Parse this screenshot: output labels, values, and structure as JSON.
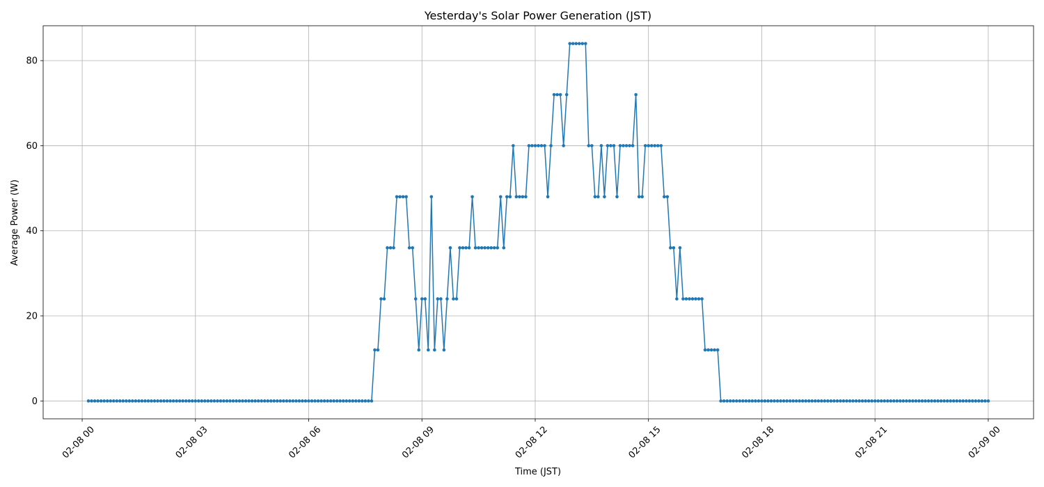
{
  "chart_data": {
    "type": "line",
    "title": "Yesterday's Solar Power Generation (JST)",
    "xlabel": "Time (JST)",
    "ylabel": "Average Power (W)",
    "color": "#1f77b4",
    "grid": true,
    "xlim": [
      -62,
      1512
    ],
    "ylim": [
      -4.2,
      88.2
    ],
    "xticks": [
      {
        "value": 0,
        "label": "02-08 00"
      },
      {
        "value": 180,
        "label": "02-08 03"
      },
      {
        "value": 360,
        "label": "02-08 06"
      },
      {
        "value": 540,
        "label": "02-08 09"
      },
      {
        "value": 720,
        "label": "02-08 12"
      },
      {
        "value": 900,
        "label": "02-08 15"
      },
      {
        "value": 1080,
        "label": "02-08 18"
      },
      {
        "value": 1260,
        "label": "02-08 21"
      },
      {
        "value": 1440,
        "label": "02-09 00"
      }
    ],
    "yticks": [
      0,
      20,
      40,
      60,
      80
    ],
    "x": [
      10,
      15,
      20,
      25,
      30,
      35,
      40,
      45,
      50,
      55,
      60,
      65,
      70,
      75,
      80,
      85,
      90,
      95,
      100,
      105,
      110,
      115,
      120,
      125,
      130,
      135,
      140,
      145,
      150,
      155,
      160,
      165,
      170,
      175,
      180,
      185,
      190,
      195,
      200,
      205,
      210,
      215,
      220,
      225,
      230,
      235,
      240,
      245,
      250,
      255,
      260,
      265,
      270,
      275,
      280,
      285,
      290,
      295,
      300,
      305,
      310,
      315,
      320,
      325,
      330,
      335,
      340,
      345,
      350,
      355,
      360,
      365,
      370,
      375,
      380,
      385,
      390,
      395,
      400,
      405,
      410,
      415,
      420,
      425,
      430,
      435,
      440,
      445,
      450,
      455,
      460,
      465,
      470,
      475,
      480,
      485,
      490,
      495,
      500,
      505,
      510,
      515,
      520,
      525,
      530,
      535,
      540,
      545,
      550,
      555,
      560,
      565,
      570,
      575,
      580,
      585,
      590,
      595,
      600,
      605,
      610,
      615,
      620,
      625,
      630,
      635,
      640,
      645,
      650,
      655,
      660,
      665,
      670,
      675,
      680,
      685,
      690,
      695,
      700,
      705,
      710,
      715,
      720,
      725,
      730,
      735,
      740,
      745,
      750,
      755,
      760,
      765,
      770,
      775,
      780,
      785,
      790,
      795,
      800,
      805,
      810,
      815,
      820,
      825,
      830,
      835,
      840,
      845,
      850,
      855,
      860,
      865,
      870,
      875,
      880,
      885,
      890,
      895,
      900,
      905,
      910,
      915,
      920,
      925,
      930,
      935,
      940,
      945,
      950,
      955,
      960,
      965,
      970,
      975,
      980,
      985,
      990,
      995,
      1000,
      1005,
      1010,
      1015,
      1020,
      1025,
      1030,
      1035,
      1040,
      1045,
      1050,
      1055,
      1060,
      1065,
      1070,
      1075,
      1080,
      1085,
      1090,
      1095,
      1100,
      1105,
      1110,
      1115,
      1120,
      1125,
      1130,
      1135,
      1140,
      1145,
      1150,
      1155,
      1160,
      1165,
      1170,
      1175,
      1180,
      1185,
      1190,
      1195,
      1200,
      1205,
      1210,
      1215,
      1220,
      1225,
      1230,
      1235,
      1240,
      1245,
      1250,
      1255,
      1260,
      1265,
      1270,
      1275,
      1280,
      1285,
      1290,
      1295,
      1300,
      1305,
      1310,
      1315,
      1320,
      1325,
      1330,
      1335,
      1340,
      1345,
      1350,
      1355,
      1360,
      1365,
      1370,
      1375,
      1380,
      1385,
      1390,
      1395,
      1400,
      1405,
      1410,
      1415,
      1420,
      1425,
      1430,
      1435,
      1440
    ],
    "values": [
      0,
      0,
      0,
      0,
      0,
      0,
      0,
      0,
      0,
      0,
      0,
      0,
      0,
      0,
      0,
      0,
      0,
      0,
      0,
      0,
      0,
      0,
      0,
      0,
      0,
      0,
      0,
      0,
      0,
      0,
      0,
      0,
      0,
      0,
      0,
      0,
      0,
      0,
      0,
      0,
      0,
      0,
      0,
      0,
      0,
      0,
      0,
      0,
      0,
      0,
      0,
      0,
      0,
      0,
      0,
      0,
      0,
      0,
      0,
      0,
      0,
      0,
      0,
      0,
      0,
      0,
      0,
      0,
      0,
      0,
      0,
      0,
      0,
      0,
      0,
      0,
      0,
      0,
      0,
      0,
      0,
      0,
      0,
      0,
      0,
      0,
      0,
      0,
      0,
      0,
      0,
      12,
      12,
      24,
      24,
      36,
      36,
      36,
      48,
      48,
      48,
      48,
      36,
      36,
      24,
      12,
      24,
      24,
      12,
      48,
      12,
      24,
      24,
      12,
      24,
      36,
      24,
      24,
      36,
      36,
      36,
      36,
      48,
      36,
      36,
      36,
      36,
      36,
      36,
      36,
      36,
      48,
      36,
      48,
      48,
      60,
      48,
      48,
      48,
      48,
      60,
      60,
      60,
      60,
      60,
      60,
      48,
      60,
      72,
      72,
      72,
      60,
      72,
      84,
      84,
      84,
      84,
      84,
      84,
      60,
      60,
      48,
      48,
      60,
      48,
      60,
      60,
      60,
      48,
      60,
      60,
      60,
      60,
      60,
      72,
      48,
      48,
      60,
      60,
      60,
      60,
      60,
      60,
      48,
      48,
      36,
      36,
      24,
      36,
      24,
      24,
      24,
      24,
      24,
      24,
      24,
      12,
      12,
      12,
      12,
      12,
      0,
      0,
      0,
      0,
      0,
      0,
      0,
      0,
      0,
      0,
      0,
      0,
      0,
      0,
      0,
      0,
      0,
      0,
      0,
      0,
      0,
      0,
      0,
      0,
      0,
      0,
      0,
      0,
      0,
      0,
      0,
      0,
      0,
      0,
      0,
      0,
      0,
      0,
      0,
      0,
      0,
      0,
      0,
      0,
      0,
      0,
      0,
      0,
      0,
      0,
      0,
      0,
      0,
      0,
      0,
      0,
      0,
      0,
      0,
      0,
      0,
      0,
      0,
      0,
      0,
      0,
      0,
      0,
      0,
      0,
      0,
      0,
      0,
      0,
      0,
      0,
      0,
      0,
      0,
      0,
      0,
      0,
      0,
      0,
      0,
      0
    ]
  }
}
